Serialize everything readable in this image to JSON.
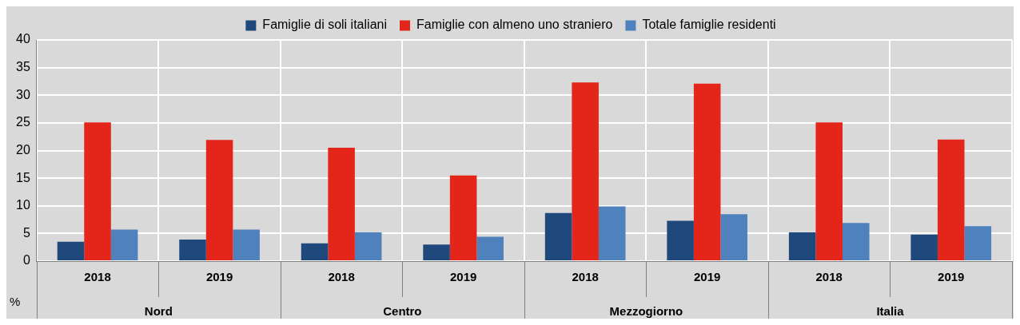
{
  "chart_data": {
    "type": "bar",
    "categories": [
      "2018",
      "2019",
      "2018",
      "2019",
      "2018",
      "2019",
      "2018",
      "2019"
    ],
    "series": [
      {
        "name": "Famiglie di soli italiani",
        "color": "#1f497d",
        "values": [
          3.5,
          3.9,
          3.2,
          3.0,
          8.7,
          7.3,
          5.2,
          4.8
        ]
      },
      {
        "name": "Famiglie con almeno uno straniero",
        "color": "#e3251a",
        "values": [
          25.1,
          21.9,
          20.5,
          15.5,
          32.3,
          32.1,
          25.1,
          22.0
        ]
      },
      {
        "name": "Totale famiglie residenti",
        "color": "#4f81bd",
        "values": [
          5.7,
          5.7,
          5.2,
          4.4,
          9.9,
          8.5,
          6.9,
          6.3
        ]
      }
    ],
    "ylabel": "%",
    "annotations": [
      "Nord",
      "Centro",
      "Mezzogiorno",
      "Italia"
    ],
    "ylim": [
      0,
      40
    ],
    "yticks": [
      0,
      5,
      10,
      15,
      20,
      25,
      30,
      35,
      40
    ],
    "grid": true,
    "legend": "top"
  }
}
